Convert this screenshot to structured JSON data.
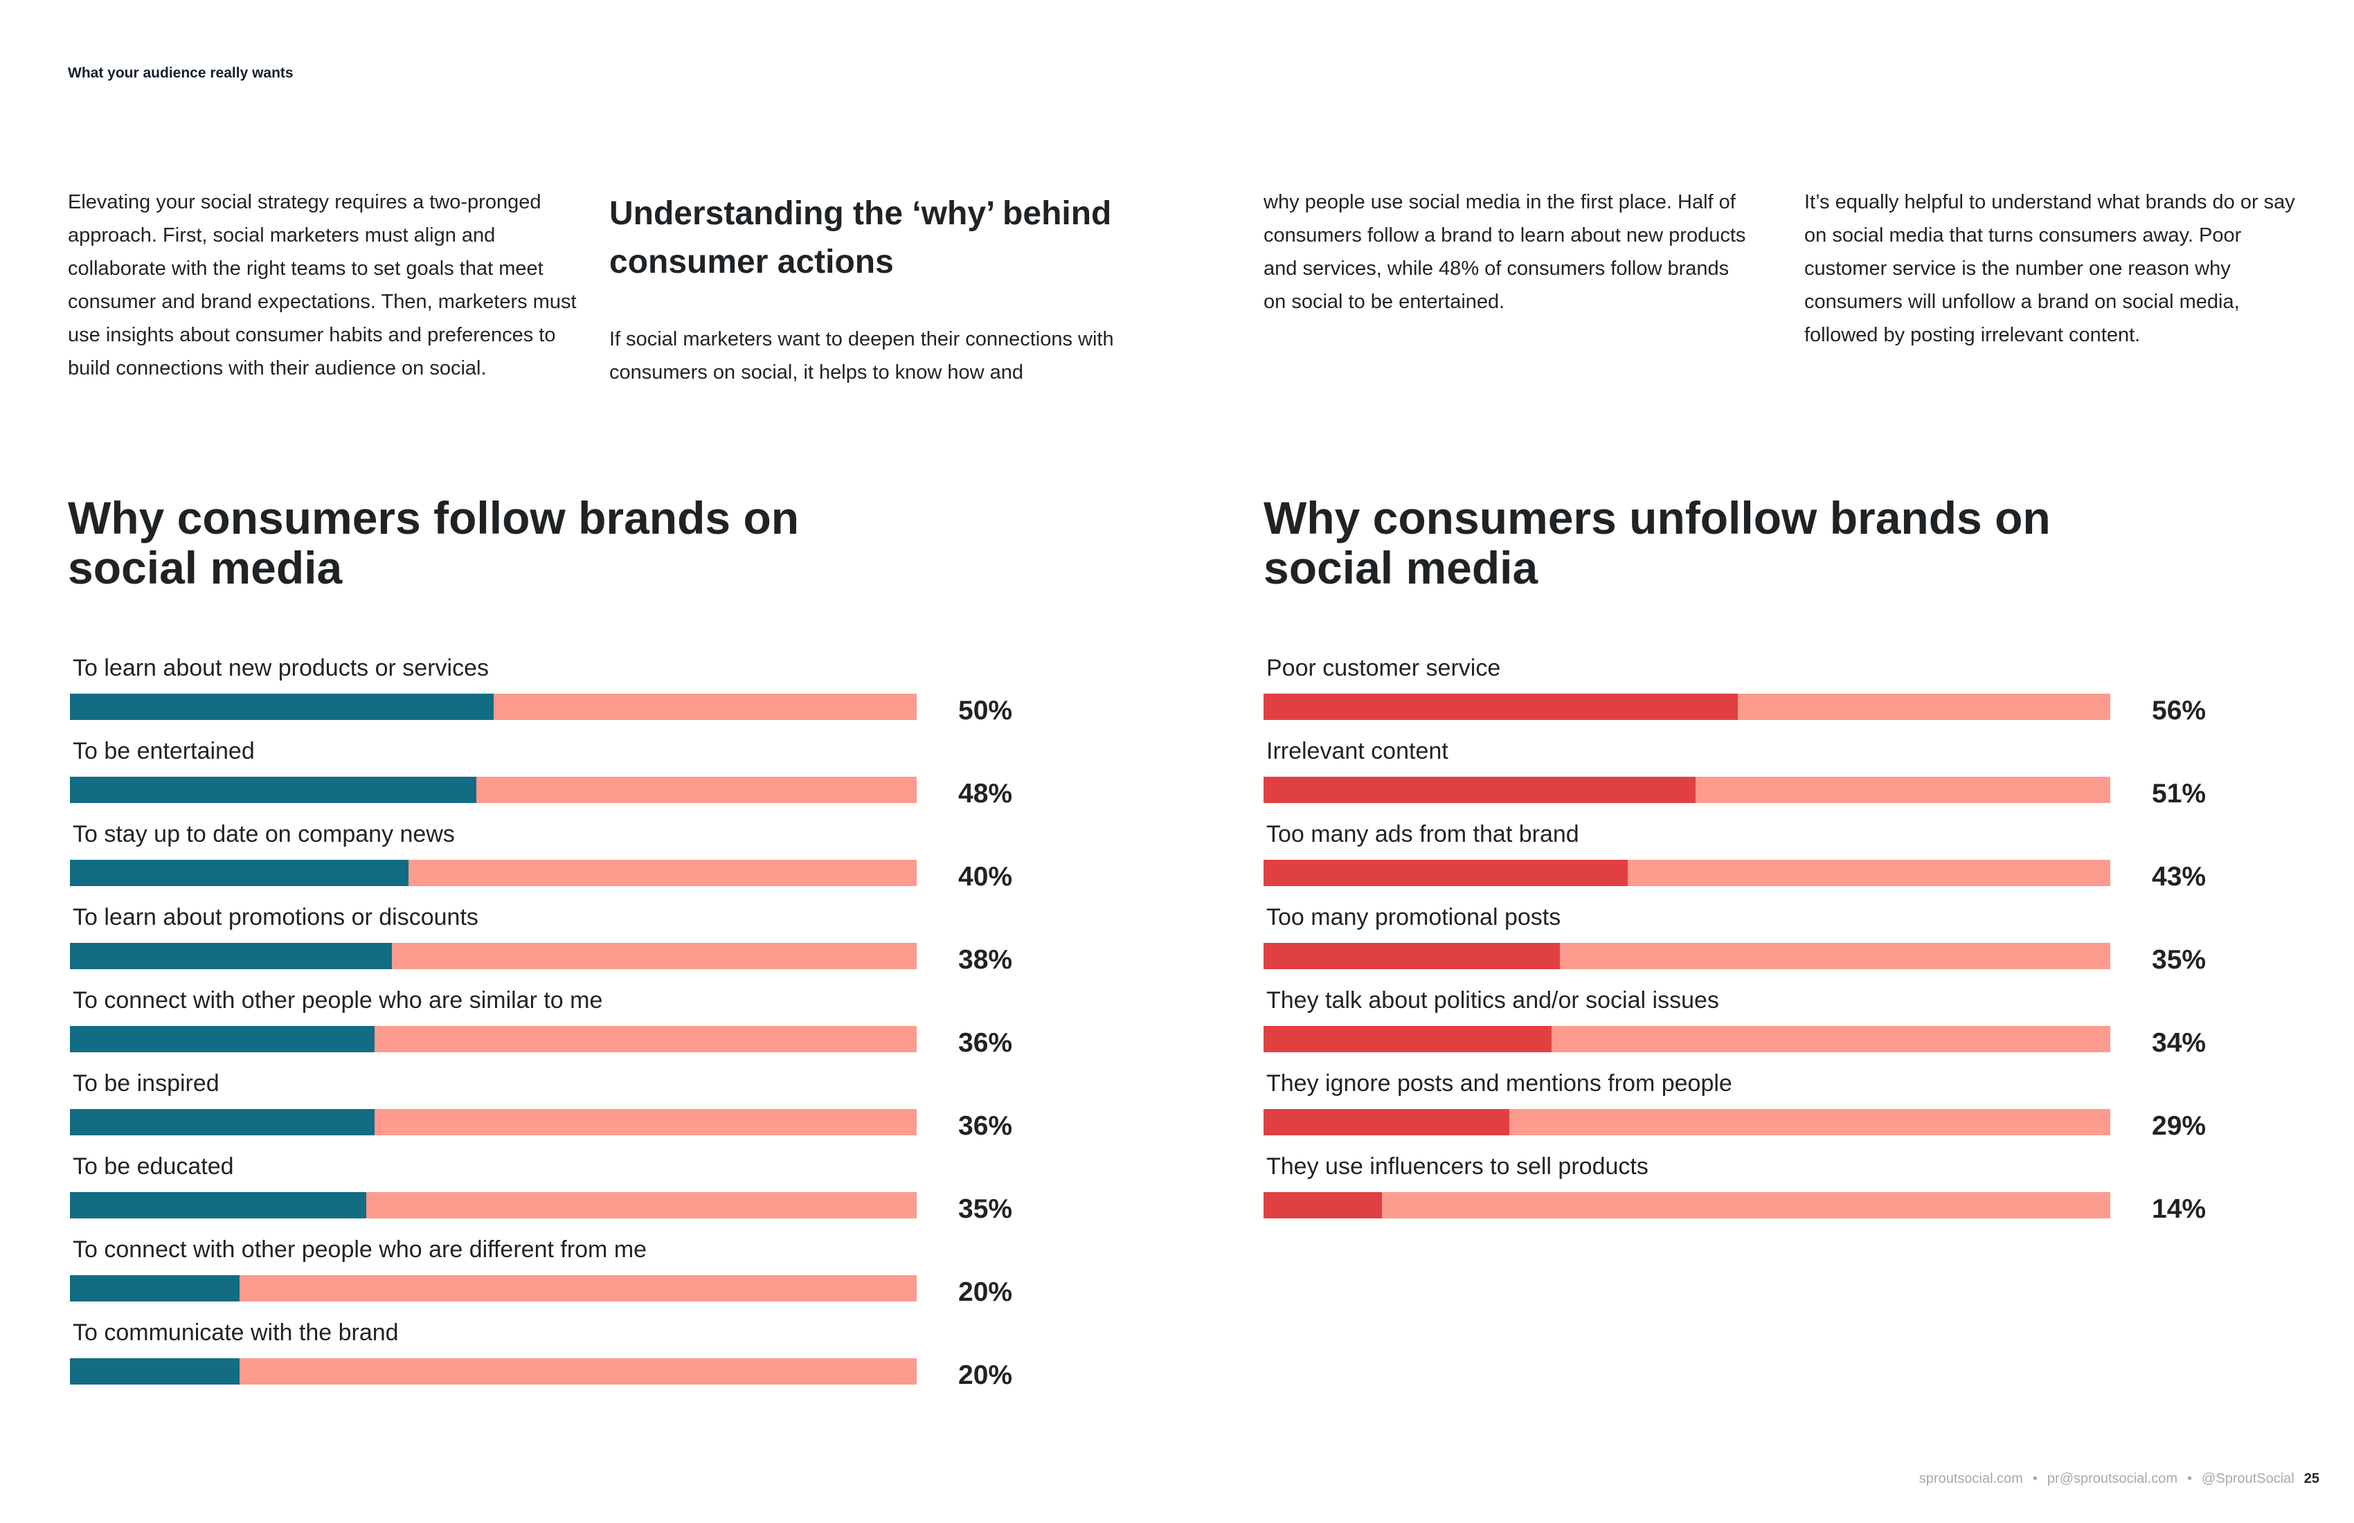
{
  "header": {
    "section_title": "What your audience really wants"
  },
  "intro": {
    "col1": "Elevating your social strategy requires a two-pronged approach. First, social marketers must align and collaborate with the right teams to set goals that meet consumer and brand expectations. Then, marketers must use insights about consumer habits and preferences to build connections with their audience on social.",
    "col2_heading": "Understanding the ‘why’ behind consumer actions",
    "col2": "If social marketers want to deepen their connections with consumers on social, it helps to know how and",
    "col3": "why people use social media in the first place. Half of consumers follow a brand to learn about new products and services, while 48% of consumers follow brands on social to be entertained.",
    "col4": "It’s equally helpful to understand what brands do or say on social media that turns consumers away. Poor customer service is the number one reason why consumers will unfollow a brand on social media, followed by posting irrelevant content."
  },
  "chart_data": [
    {
      "type": "bar",
      "orientation": "horizontal",
      "title": "Why consumers follow brands on social media",
      "categories": [
        "To learn about new products or services",
        "To be entertained",
        "To stay up to date on company news",
        "To learn about promotions or discounts",
        "To connect with other people who are similar to me",
        "To be inspired",
        "To be educated",
        "To connect with other people who are different from me",
        "To communicate with the brand"
      ],
      "values": [
        50,
        48,
        40,
        38,
        36,
        36,
        35,
        20,
        20
      ],
      "labels": [
        "50%",
        "48%",
        "40%",
        "38%",
        "36%",
        "36%",
        "35%",
        "20%",
        "20%"
      ],
      "xlim": [
        0,
        100
      ],
      "fill_color": "#126d84",
      "track_color": "#fd9b8e"
    },
    {
      "type": "bar",
      "orientation": "horizontal",
      "title": "Why consumers unfollow brands on social media",
      "categories": [
        "Poor customer service",
        "Irrelevant content",
        "Too many ads from that brand",
        "Too many promotional posts",
        "They talk about politics and/or social issues",
        "They ignore posts and mentions from people",
        "They use influencers to sell products"
      ],
      "values": [
        56,
        51,
        43,
        35,
        34,
        29,
        14
      ],
      "labels": [
        "56%",
        "51%",
        "43%",
        "35%",
        "34%",
        "29%",
        "14%"
      ],
      "xlim": [
        0,
        100
      ],
      "fill_color": "#e04041",
      "track_color": "#fd9b8e"
    }
  ],
  "footer": {
    "website": "sproutsocial.com",
    "email": "pr@sproutsocial.com",
    "handle": "@SproutSocial",
    "separator": "•",
    "page_number": "25"
  }
}
